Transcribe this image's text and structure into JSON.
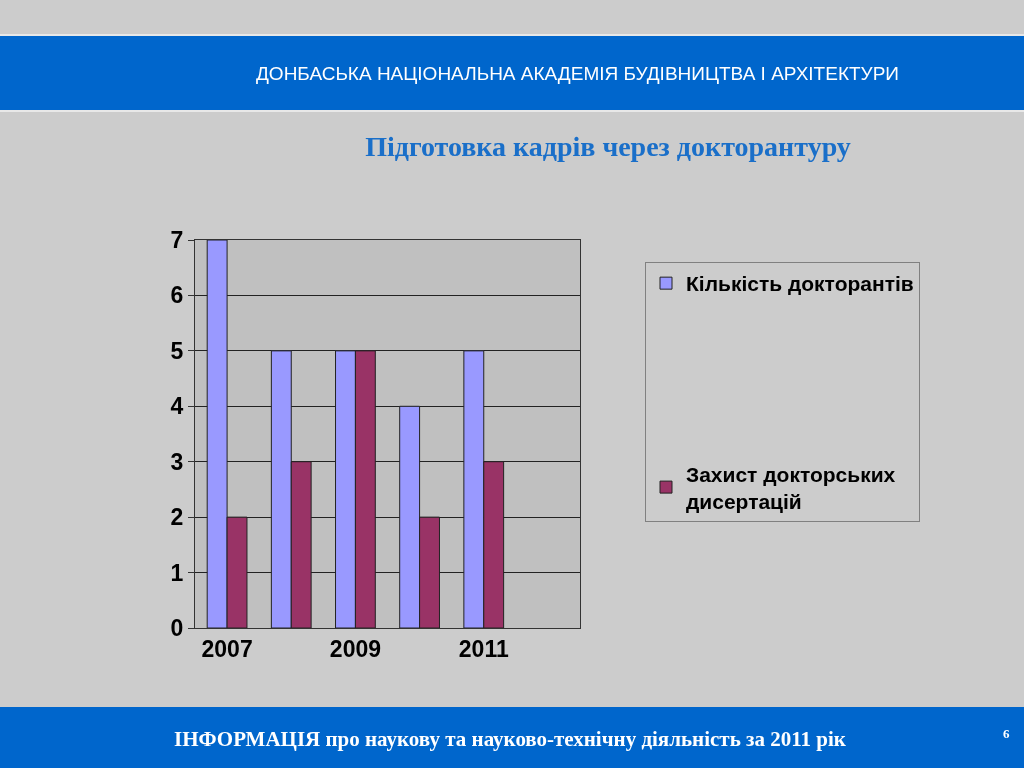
{
  "chart_data": {
    "type": "bar",
    "title": "Підготовка кадрів через докторантуру",
    "annotations": [
      "ДОНБАСЬКА НАЦІОНАЛЬНА АКАДЕМІЯ БУДІВНИЦТВА І АРХІТЕКТУРИ",
      "ІНФОРМАЦІЯ про наукову та науково-технічну діяльність за 2011 рік",
      "6"
    ],
    "categories": [
      "2007",
      null,
      "2009",
      null,
      "2011",
      null
    ],
    "series": [
      {
        "name": "Кількість докторантів",
        "color": "#9999ff",
        "values": [
          7,
          5,
          5,
          4,
          5,
          null
        ]
      },
      {
        "name": "Захист докторських дисертацій",
        "color": "#993366",
        "values": [
          2,
          3,
          5,
          2,
          3,
          null
        ]
      }
    ],
    "ylim": [
      0,
      7
    ],
    "yticks": [
      0,
      1,
      2,
      3,
      4,
      5,
      6,
      7
    ],
    "grid": "y",
    "legend": "right"
  }
}
